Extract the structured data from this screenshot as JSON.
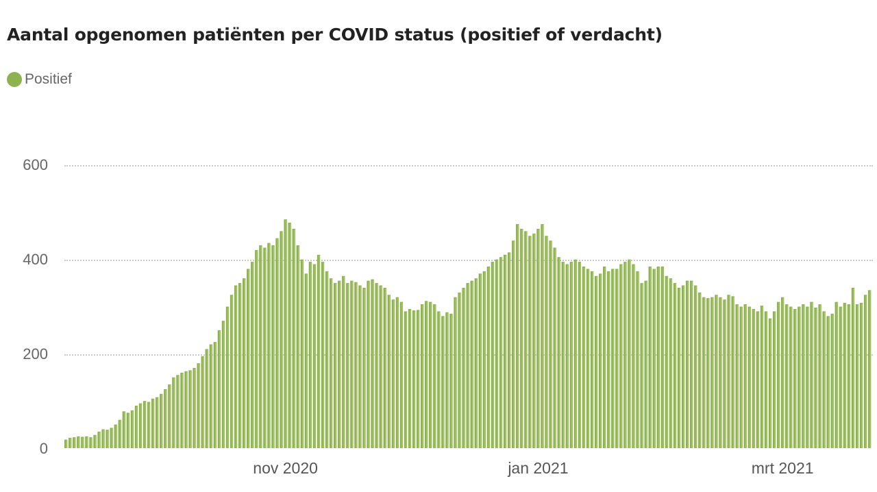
{
  "header": {
    "title": "Aantal opgenomen patiënten per COVID status (positief of verdacht)"
  },
  "legend": {
    "items": [
      {
        "label": "Positief",
        "color": "#8db24e"
      }
    ]
  },
  "axes": {
    "y_ticks": [
      {
        "label": "600",
        "value": 600
      },
      {
        "label": "400",
        "value": 400
      },
      {
        "label": "200",
        "value": 200
      },
      {
        "label": "0",
        "value": 0
      }
    ],
    "x_ticks": [
      {
        "label": "nov 2020",
        "index": 53
      },
      {
        "label": "jan 2021",
        "index": 114
      },
      {
        "label": "mrt 2021",
        "index": 173
      }
    ]
  },
  "colors": {
    "bar": "#8db24e",
    "bar_highlight": "#c5dd8a",
    "grid": "#c8c8c8"
  },
  "chart_data": {
    "type": "bar",
    "title": "Aantal opgenomen patiënten per COVID status (positief of verdacht)",
    "xlabel": "",
    "ylabel": "",
    "ylim": [
      0,
      600
    ],
    "grid": true,
    "legend_position": "top-left",
    "x_start": "2020-09-08",
    "x_end": "2021-03-21",
    "x_tick_labels": [
      "nov 2020",
      "jan 2021",
      "mrt 2021"
    ],
    "y_tick_labels": [
      "0",
      "200",
      "400",
      "600"
    ],
    "series": [
      {
        "name": "Positief",
        "color": "#8db24e",
        "values": [
          18,
          22,
          23,
          25,
          24,
          25,
          23,
          28,
          35,
          40,
          39,
          43,
          50,
          60,
          78,
          75,
          80,
          90,
          95,
          100,
          98,
          105,
          108,
          115,
          125,
          135,
          150,
          155,
          160,
          163,
          165,
          170,
          180,
          195,
          210,
          220,
          225,
          250,
          270,
          300,
          325,
          345,
          350,
          360,
          380,
          395,
          420,
          430,
          425,
          435,
          430,
          445,
          460,
          485,
          478,
          465,
          430,
          400,
          370,
          395,
          390,
          410,
          395,
          375,
          360,
          350,
          355,
          365,
          350,
          355,
          352,
          345,
          340,
          355,
          358,
          350,
          345,
          340,
          325,
          315,
          320,
          310,
          290,
          295,
          292,
          293,
          305,
          312,
          310,
          305,
          290,
          280,
          288,
          285,
          320,
          330,
          340,
          350,
          355,
          360,
          370,
          375,
          385,
          395,
          400,
          405,
          410,
          415,
          440,
          475,
          465,
          460,
          450,
          455,
          465,
          475,
          450,
          440,
          425,
          405,
          395,
          390,
          395,
          400,
          395,
          385,
          380,
          375,
          365,
          370,
          385,
          375,
          380,
          380,
          390,
          395,
          400,
          390,
          375,
          350,
          355,
          385,
          380,
          385,
          385,
          365,
          360,
          350,
          340,
          345,
          355,
          355,
          345,
          330,
          320,
          318,
          320,
          325,
          320,
          315,
          325,
          322,
          305,
          300,
          305,
          300,
          295,
          290,
          302,
          290,
          275,
          290,
          310,
          320,
          305,
          300,
          295,
          300,
          305,
          300,
          310,
          298,
          305,
          290,
          280,
          285,
          310,
          300,
          308,
          305,
          340,
          305,
          308,
          325,
          335
        ]
      }
    ]
  }
}
